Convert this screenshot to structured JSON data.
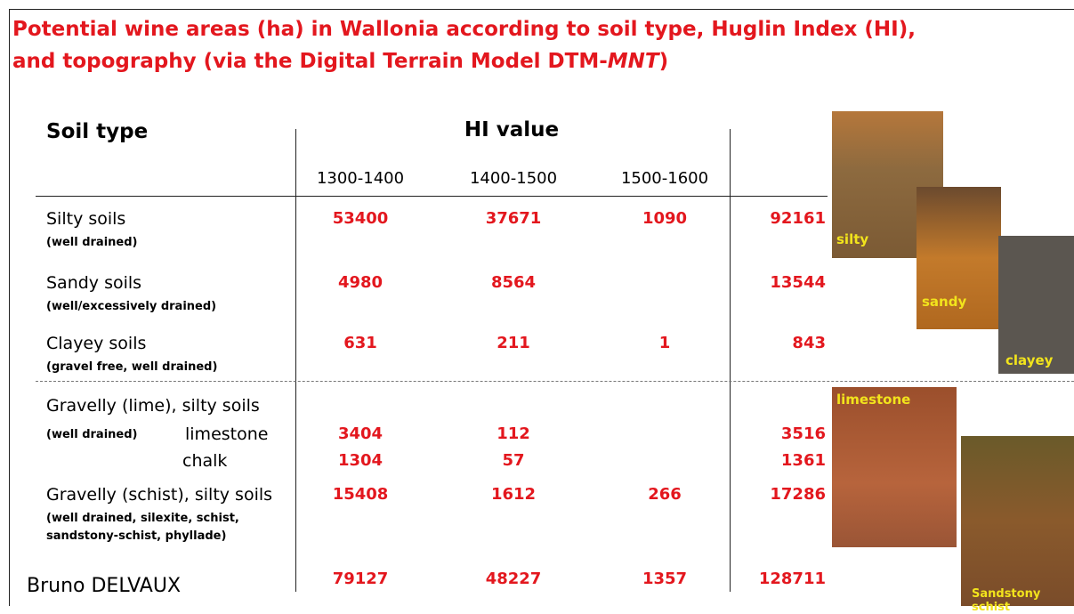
{
  "title": {
    "line1": "Potential wine areas (ha) in Wallonia according to soil type, Huglin Index (HI),",
    "line2": "and topography (via the Digital Terrain Model DTM-",
    "line2_italic": "MNT",
    "line2_end": ")"
  },
  "table": {
    "header": {
      "soil_type": "Soil type",
      "hi": "HI value",
      "columns": [
        "1300-1400",
        "1400-1500",
        "1500-1600"
      ]
    },
    "rows": [
      {
        "name": "Silty soils",
        "note": "(well drained)",
        "values": [
          53400,
          37671,
          1090
        ],
        "total": 92161
      },
      {
        "name": "Sandy soils",
        "note": "(well/excessively drained)",
        "values": [
          4980,
          8564,
          null
        ],
        "total": 13544
      },
      {
        "name": "Clayey soils",
        "note": "(gravel free, well drained)",
        "values": [
          631,
          211,
          1
        ],
        "total": 843
      },
      {
        "name": "Gravelly (lime), silty soils",
        "note": "(well drained)",
        "subrows": [
          {
            "label": "limestone",
            "values": [
              3404,
              112,
              null
            ],
            "total": 3516
          },
          {
            "label": "chalk",
            "values": [
              1304,
              57,
              null
            ],
            "total": 1361
          }
        ]
      },
      {
        "name": "Gravelly (schist), silty soils",
        "note": [
          "(well drained, silexite, schist,",
          "sandstony-schist, phyllade)"
        ],
        "values": [
          15408,
          1612,
          266
        ],
        "total": 17286
      }
    ],
    "totals": {
      "values": [
        79127,
        48227,
        1357
      ],
      "total": 128711
    }
  },
  "photos": [
    "silty",
    "sandy",
    "clayey",
    "limestone",
    "Sandstony schist"
  ],
  "author": "Bruno DELVAUX"
}
